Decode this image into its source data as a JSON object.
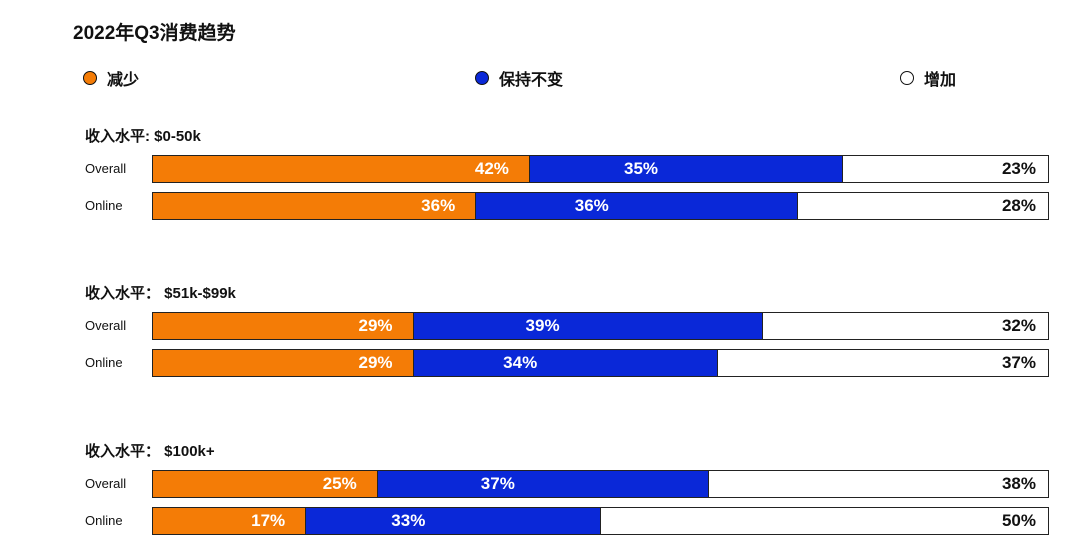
{
  "chart_data": {
    "type": "bar",
    "stacked": true,
    "orientation": "horizontal",
    "title": "2022年Q3消费趋势",
    "legend": [
      {
        "name": "减少",
        "color": "#f47c06"
      },
      {
        "name": "保持不变",
        "color": "#0a28d8"
      },
      {
        "name": "增加",
        "color": "#ffffff"
      }
    ],
    "groups": [
      {
        "title": "收入水平: $0-50k",
        "rows": [
          {
            "label": "Overall",
            "values": [
              42,
              35,
              23
            ]
          },
          {
            "label": "Online",
            "values": [
              36,
              36,
              28
            ]
          }
        ]
      },
      {
        "title": "收入水平： $51k-$99k",
        "rows": [
          {
            "label": "Overall",
            "values": [
              29,
              39,
              32
            ]
          },
          {
            "label": "Online",
            "values": [
              29,
              34,
              37
            ]
          }
        ]
      },
      {
        "title": "收入水平： $100k+",
        "rows": [
          {
            "label": "Overall",
            "values": [
              25,
              37,
              38
            ]
          },
          {
            "label": "Online",
            "values": [
              17,
              33,
              50
            ]
          }
        ]
      }
    ],
    "value_suffix": "%"
  }
}
